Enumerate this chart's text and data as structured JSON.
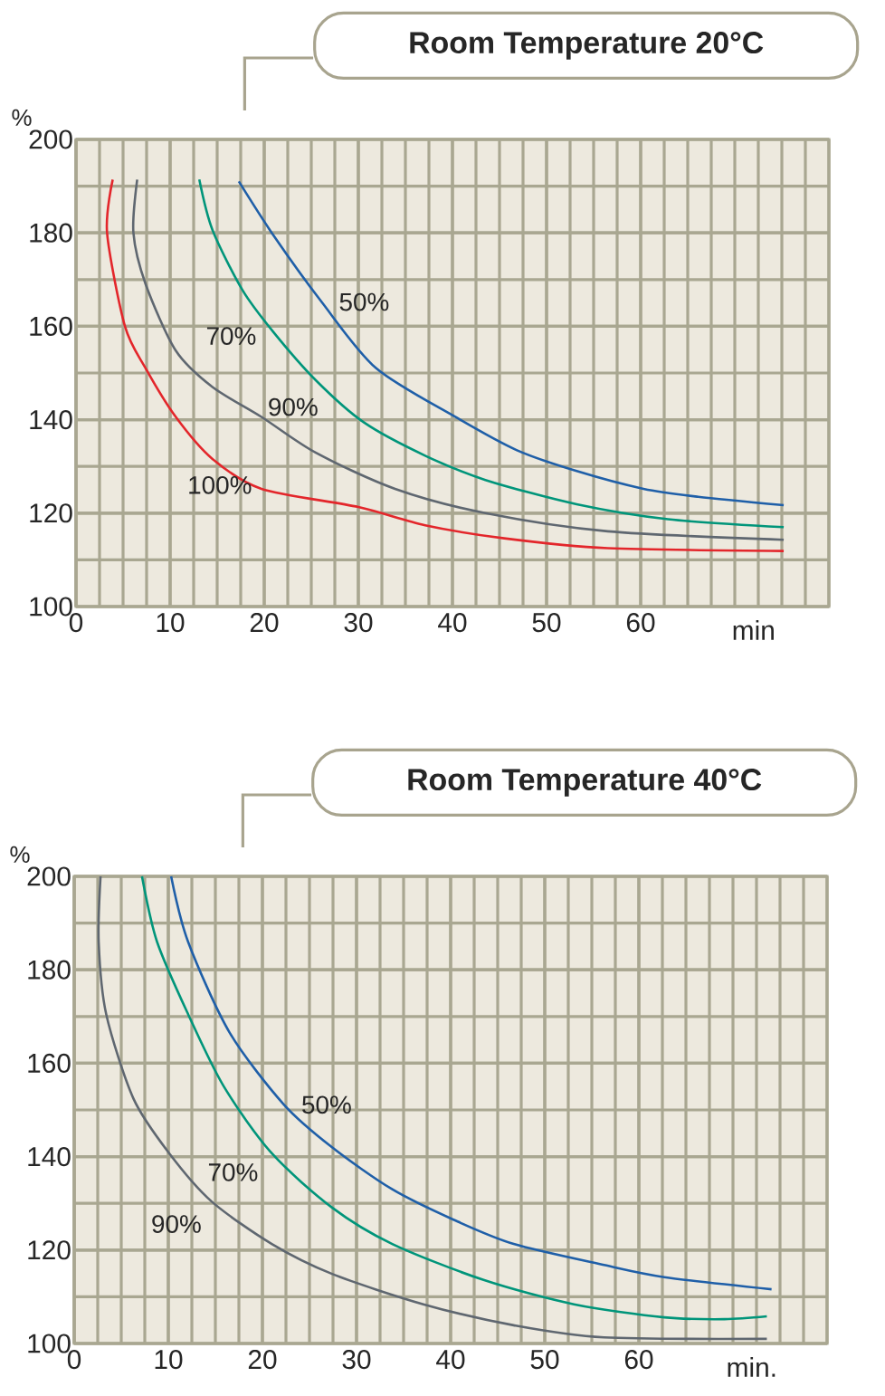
{
  "chart_data": [
    {
      "type": "line",
      "title": "Room Temperature 20°C",
      "xlabel": "min",
      "ylabel": "%",
      "xlim": [
        0,
        80
      ],
      "ylim": [
        100,
        200
      ],
      "xticks": [
        0,
        10,
        20,
        30,
        40,
        50,
        60
      ],
      "yticks": [
        100,
        120,
        140,
        160,
        180,
        200
      ],
      "grid": true,
      "series": [
        {
          "name": "100%",
          "color": "#e3262b",
          "x": [
            3.9,
            3.3,
            5.2,
            7.4,
            10.6,
            14.5,
            19.7,
            30,
            37.1,
            45.5,
            56.5,
            75.2
          ],
          "values": [
            191.4,
            180,
            160,
            151,
            140.6,
            131.6,
            125.2,
            121.3,
            117.4,
            114.6,
            112.5,
            111.9
          ]
        },
        {
          "name": "90%",
          "color": "#5f6770",
          "x": [
            6.5,
            6.1,
            7.4,
            10.6,
            14.5,
            19.7,
            25.5,
            33.9,
            43.5,
            56.5,
            75.2
          ],
          "values": [
            191.4,
            180,
            169,
            154.8,
            147,
            140.6,
            132.9,
            125.2,
            120,
            116.1,
            114.3
          ]
        },
        {
          "name": "70%",
          "color": "#00957a",
          "x": [
            13.1,
            14.5,
            17.7,
            21,
            25.5,
            30.6,
            37.1,
            43.5,
            53.2,
            62.9,
            75.2
          ],
          "values": [
            191.4,
            180.6,
            167.7,
            158.7,
            148.4,
            139.4,
            132.3,
            127.1,
            121.9,
            118.7,
            117
          ]
        },
        {
          "name": "50%",
          "color": "#1f5fa8",
          "x": [
            17.3,
            21,
            26.1,
            31.9,
            40.3,
            46.8,
            53.2,
            60.3,
            66.1,
            75.2
          ],
          "values": [
            191,
            179.4,
            165.2,
            151,
            140.6,
            133.5,
            129,
            125.2,
            123.5,
            121.7
          ]
        }
      ]
    },
    {
      "type": "line",
      "title": "Room Temperature 40°C",
      "xlabel": "min.",
      "ylabel": "%",
      "xlim": [
        0,
        80
      ],
      "ylim": [
        100,
        200
      ],
      "xticks": [
        0,
        10,
        20,
        30,
        40,
        50,
        60
      ],
      "yticks": [
        100,
        120,
        140,
        160,
        180,
        200
      ],
      "grid": true,
      "series": [
        {
          "name": "90%",
          "color": "#5f6770",
          "x": [
            2.8,
            2.6,
            3.4,
            6.3,
            10.1,
            14.6,
            21,
            27.4,
            37.1,
            46.7,
            56.3,
            73.6
          ],
          "values": [
            200,
            186,
            170.5,
            152.4,
            140.7,
            130.4,
            121.3,
            114.9,
            108.4,
            103.9,
            101.3,
            101
          ]
        },
        {
          "name": "70%",
          "color": "#00957a",
          "x": [
            7.2,
            8.8,
            12.1,
            15.9,
            21,
            27.4,
            33.8,
            43.5,
            53.1,
            62.7,
            69.1,
            73.6
          ],
          "values": [
            200,
            186,
            170.5,
            155,
            140.7,
            129.1,
            121.3,
            113.6,
            108.4,
            105.6,
            105.2,
            105.8
          ]
        },
        {
          "name": "50%",
          "color": "#1f5fa8",
          "x": [
            10.3,
            12.1,
            16.5,
            22.3,
            27.4,
            33.8,
            40.3,
            46.7,
            56.3,
            62.7,
            74.1
          ],
          "values": [
            200,
            186,
            166.6,
            151.1,
            142,
            133,
            126.5,
            121.3,
            116.8,
            114.2,
            111.6
          ]
        }
      ]
    }
  ]
}
